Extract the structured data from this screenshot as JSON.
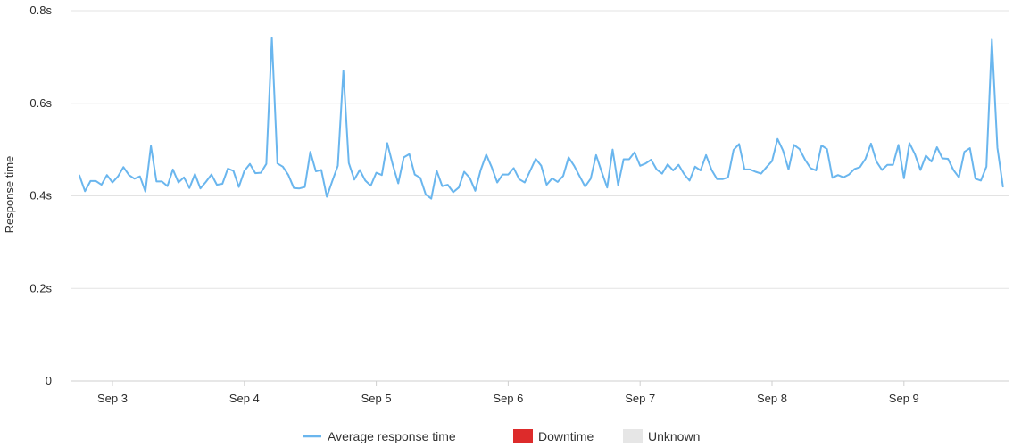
{
  "chart_data": {
    "type": "line",
    "title": "",
    "xlabel": "",
    "ylabel": "Response time",
    "y_unit": "s",
    "ylim": [
      0,
      0.8
    ],
    "y_ticks": [
      0,
      0.2,
      0.4,
      0.6,
      0.8
    ],
    "y_tick_labels": [
      "0",
      "0.2s",
      "0.4s",
      "0.6s",
      "0.8s"
    ],
    "x_range": [
      "Sep 2 18:00",
      "Sep 9 21:00"
    ],
    "x_ticks": [
      "Sep 3",
      "Sep 4",
      "Sep 5",
      "Sep 6",
      "Sep 7",
      "Sep 8",
      "Sep 9"
    ],
    "x_interval_hours": 1,
    "x_start": "Sep 2 18:00",
    "grid": true,
    "legend_position": "bottom",
    "series": [
      {
        "name": "Average response time",
        "color": "#6ab6ee",
        "values": [
          0.444,
          0.41,
          0.432,
          0.432,
          0.424,
          0.445,
          0.429,
          0.442,
          0.462,
          0.445,
          0.437,
          0.442,
          0.409,
          0.508,
          0.431,
          0.431,
          0.421,
          0.457,
          0.429,
          0.44,
          0.417,
          0.447,
          0.416,
          0.43,
          0.446,
          0.424,
          0.426,
          0.459,
          0.454,
          0.419,
          0.454,
          0.469,
          0.449,
          0.45,
          0.469,
          0.741,
          0.47,
          0.463,
          0.445,
          0.417,
          0.416,
          0.419,
          0.495,
          0.453,
          0.456,
          0.398,
          0.432,
          0.465,
          0.67,
          0.471,
          0.435,
          0.456,
          0.433,
          0.422,
          0.45,
          0.445,
          0.514,
          0.467,
          0.427,
          0.483,
          0.49,
          0.446,
          0.439,
          0.403,
          0.394,
          0.454,
          0.421,
          0.424,
          0.408,
          0.418,
          0.452,
          0.439,
          0.411,
          0.456,
          0.489,
          0.462,
          0.429,
          0.446,
          0.446,
          0.46,
          0.436,
          0.429,
          0.454,
          0.48,
          0.465,
          0.424,
          0.438,
          0.43,
          0.443,
          0.483,
          0.465,
          0.442,
          0.42,
          0.437,
          0.488,
          0.452,
          0.418,
          0.5,
          0.423,
          0.479,
          0.479,
          0.494,
          0.465,
          0.47,
          0.478,
          0.457,
          0.448,
          0.468,
          0.455,
          0.467,
          0.447,
          0.433,
          0.463,
          0.455,
          0.488,
          0.456,
          0.436,
          0.436,
          0.44,
          0.499,
          0.512,
          0.457,
          0.457,
          0.452,
          0.448,
          0.462,
          0.475,
          0.523,
          0.498,
          0.457,
          0.51,
          0.501,
          0.478,
          0.46,
          0.455,
          0.509,
          0.501,
          0.439,
          0.445,
          0.44,
          0.446,
          0.458,
          0.462,
          0.48,
          0.513,
          0.474,
          0.456,
          0.467,
          0.467,
          0.51,
          0.438,
          0.514,
          0.49,
          0.456,
          0.487,
          0.474,
          0.505,
          0.481,
          0.48,
          0.456,
          0.44,
          0.495,
          0.503,
          0.437,
          0.433,
          0.463,
          0.738,
          0.504,
          0.42
        ]
      }
    ],
    "legend": [
      {
        "label": "Average response time",
        "kind": "line",
        "color": "#6ab6ee"
      },
      {
        "label": "Downtime",
        "kind": "box",
        "color": "#dd2b2b"
      },
      {
        "label": "Unknown",
        "kind": "box",
        "color": "#e6e6e6"
      }
    ]
  }
}
